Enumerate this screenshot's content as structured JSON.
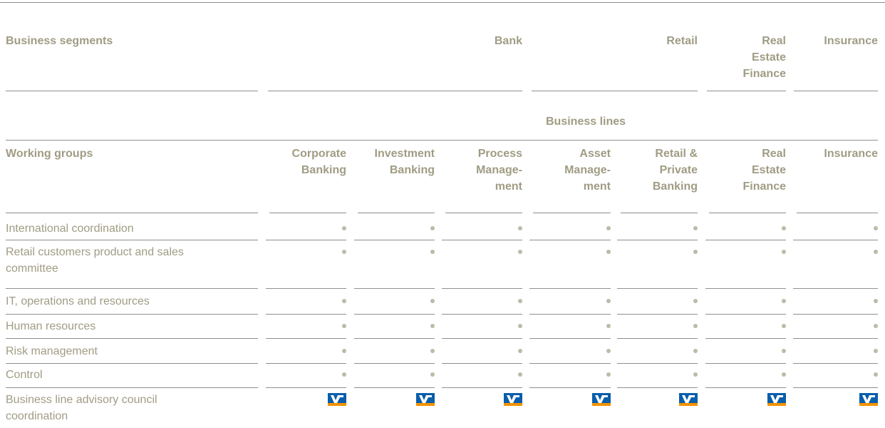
{
  "header": {
    "segments_label": "Business segments",
    "segments": [
      "Bank",
      "Retail",
      "Real\nEstate\nFinance",
      "Insurance"
    ],
    "business_lines_label": "Business lines",
    "working_groups_label": "Working groups",
    "columns": [
      "Corporate\nBanking",
      "Investment\nBanking",
      "Process\nManage-\nment",
      "Asset\nManage-\nment",
      "Retail &\nPrivate\nBanking",
      "Real\nEstate\nFinance",
      "Insurance"
    ]
  },
  "rows": [
    "International coordination",
    "Retail customers product and sales\ncommittee",
    "IT, operations and resources",
    "Human resources",
    "Risk management",
    "Control",
    "Business line advisory council\ncoordination"
  ]
}
